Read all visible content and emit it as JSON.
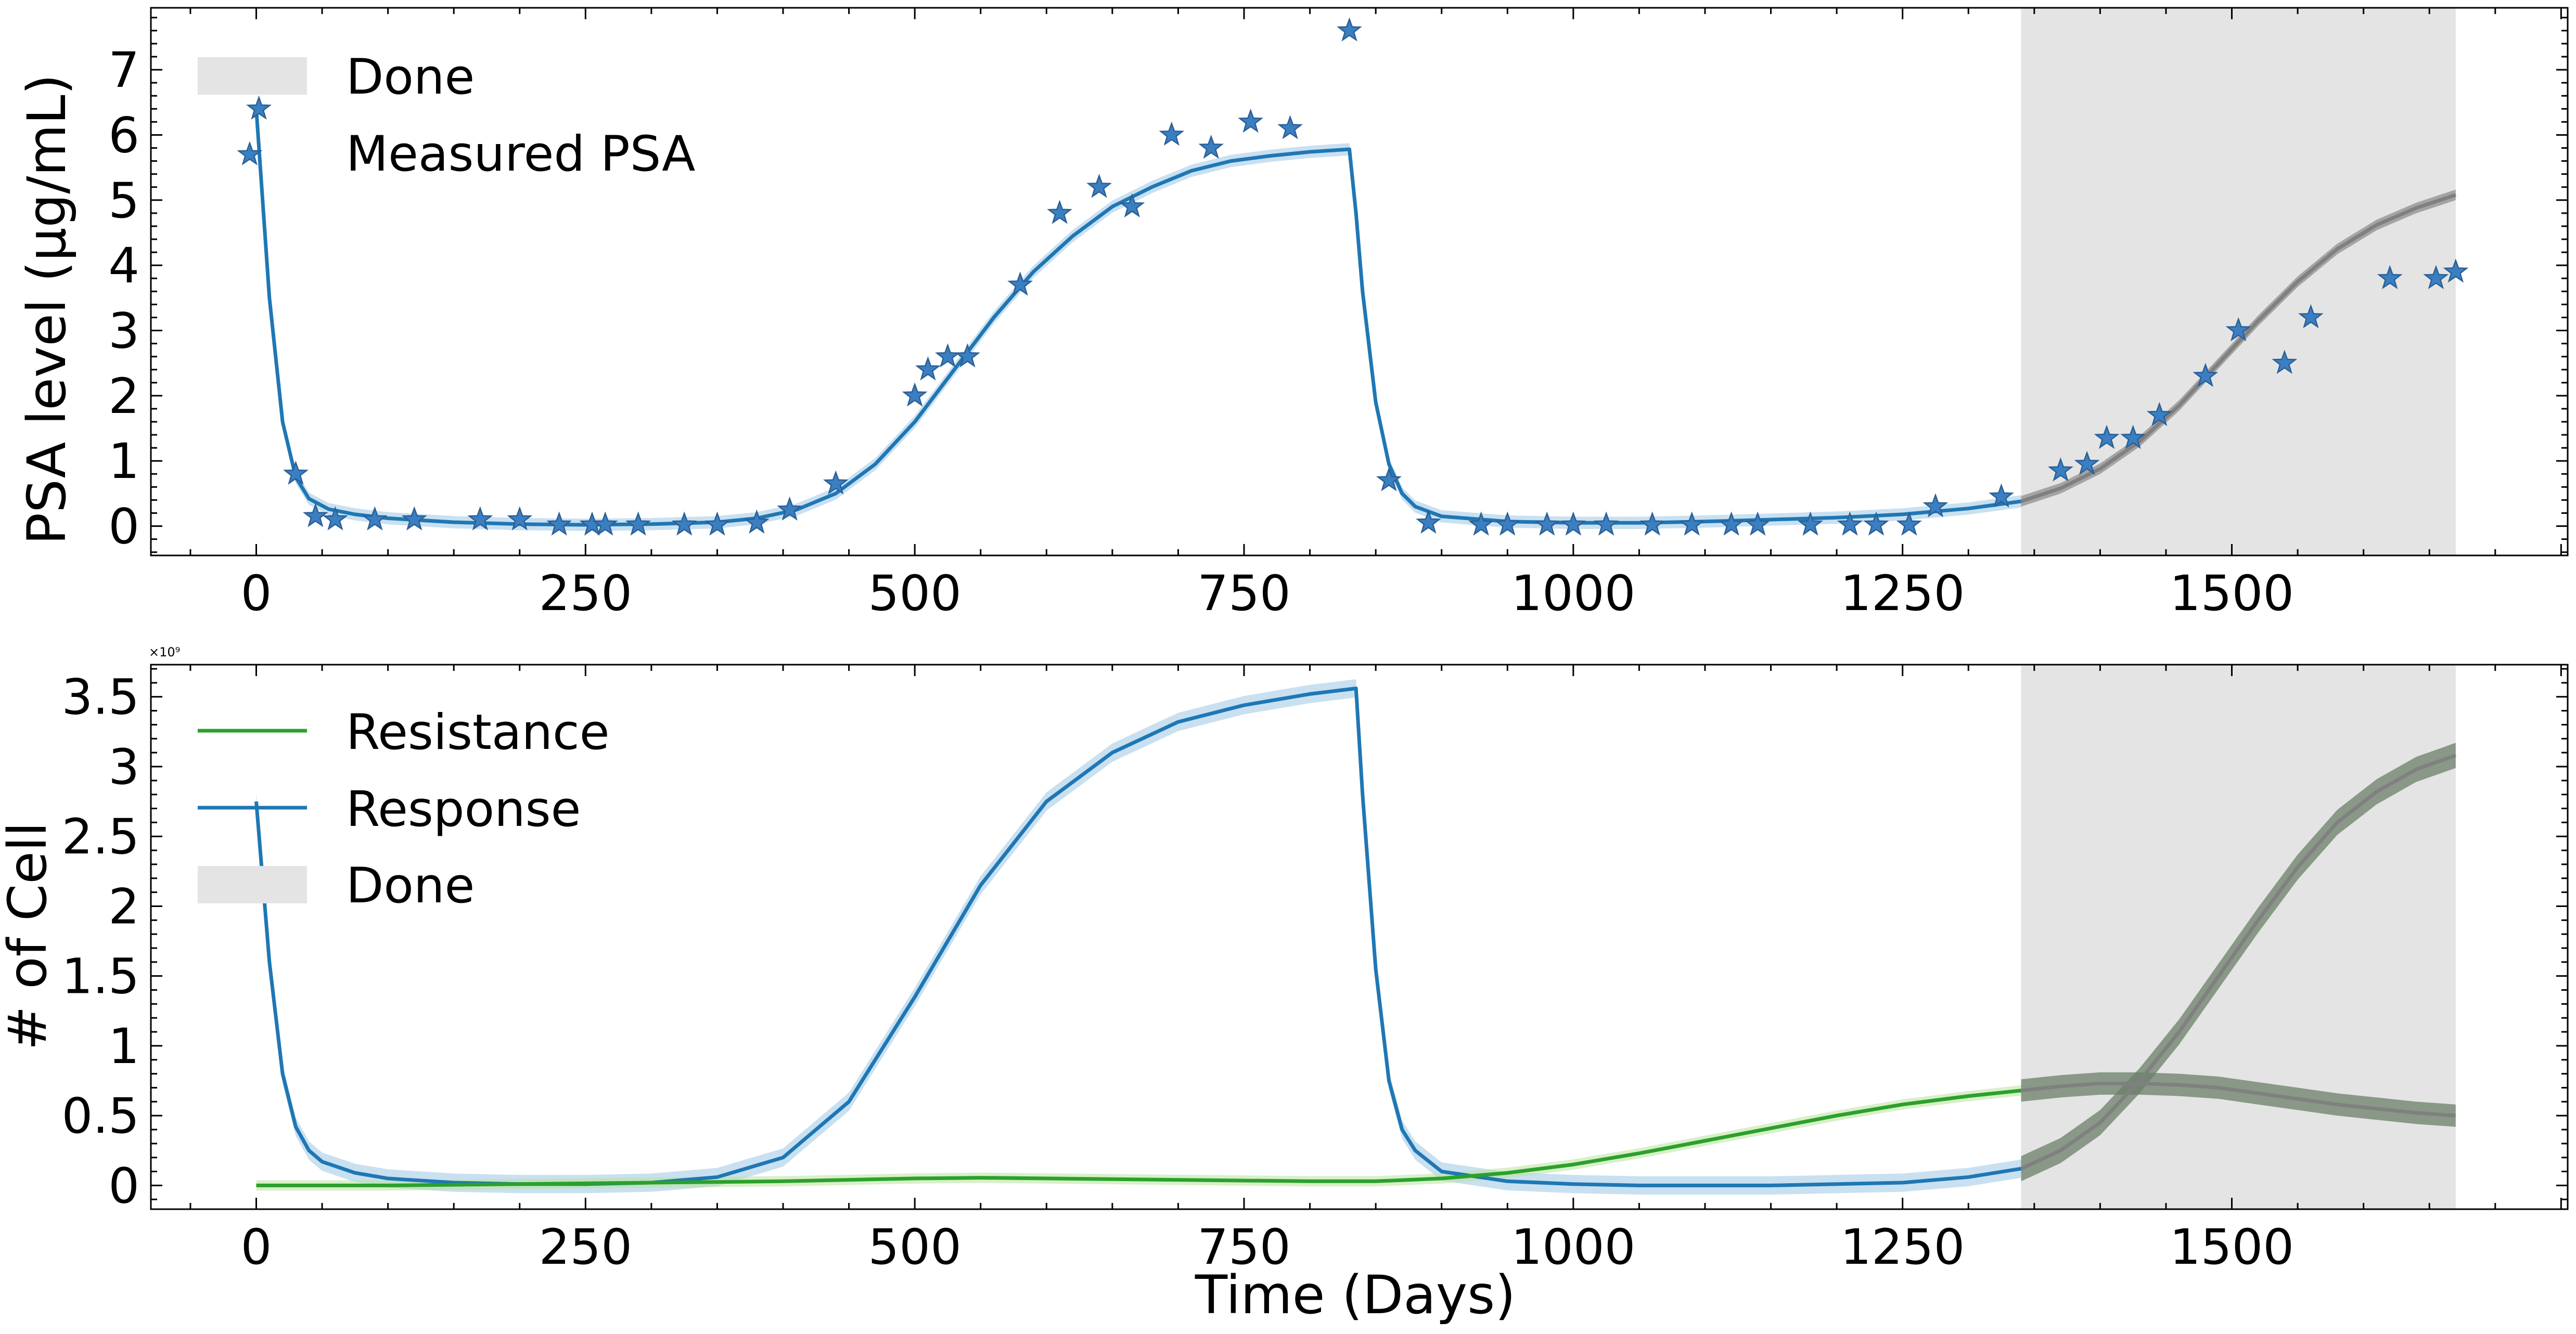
{
  "chart_data": [
    {
      "type": "scatter",
      "ylabel": "PSA level (μg/mL)",
      "xlim": [
        -80,
        1755
      ],
      "ylim": [
        -0.45,
        7.95
      ],
      "xticks": [
        0,
        250,
        500,
        750,
        1000,
        1250,
        1500
      ],
      "yticks": [
        0,
        1,
        2,
        3,
        4,
        5,
        6,
        7
      ],
      "shaded_region": {
        "label": "Done",
        "x": [
          1340,
          1670
        ]
      },
      "legend": [
        "Done",
        "Measured PSA"
      ],
      "legend_position": "top-left",
      "colors": {
        "fit": "#1f77b4",
        "prediction": "#808080",
        "points": "#3a7fc1",
        "shade": "#e4e4e4"
      },
      "series": [
        {
          "name": "Measured PSA",
          "kind": "points",
          "x": [
            -5,
            2,
            30,
            45,
            60,
            90,
            120,
            170,
            200,
            230,
            255,
            265,
            290,
            325,
            350,
            380,
            405,
            440,
            500,
            510,
            525,
            540,
            580,
            610,
            640,
            665,
            695,
            725,
            755,
            785,
            830,
            860,
            890,
            930,
            950,
            980,
            1000,
            1025,
            1060,
            1090,
            1120,
            1140,
            1180,
            1210,
            1230,
            1255,
            1275,
            1325,
            1370,
            1390,
            1405,
            1425,
            1445,
            1480,
            1505,
            1540,
            1560,
            1620,
            1655,
            1670
          ],
          "y": [
            5.7,
            6.4,
            0.8,
            0.15,
            0.1,
            0.1,
            0.1,
            0.1,
            0.1,
            0.02,
            0.02,
            0.02,
            0.02,
            0.02,
            0.02,
            0.05,
            0.25,
            0.65,
            2.0,
            2.4,
            2.6,
            2.6,
            3.7,
            4.8,
            5.2,
            4.9,
            6.0,
            5.8,
            6.2,
            6.1,
            7.6,
            0.7,
            0.05,
            0.02,
            0.02,
            0.02,
            0.02,
            0.02,
            0.02,
            0.02,
            0.02,
            0.02,
            0.02,
            0.02,
            0.02,
            0.02,
            0.3,
            0.45,
            0.85,
            0.95,
            1.35,
            1.35,
            1.7,
            2.3,
            3.0,
            2.5,
            3.2,
            3.8,
            3.8,
            3.9
          ]
        },
        {
          "kind": "line",
          "x": [
            0,
            10,
            20,
            30,
            40,
            55,
            75,
            100,
            150,
            200,
            250,
            300,
            350,
            380,
            410,
            440,
            470,
            500,
            530,
            560,
            590,
            620,
            650,
            680,
            710,
            740,
            770,
            800,
            830,
            835,
            840,
            850,
            860,
            870,
            880,
            900,
            950,
            1000,
            1050,
            1100,
            1150,
            1200,
            1250,
            1300,
            1340
          ],
          "y": [
            6.4,
            3.5,
            1.6,
            0.75,
            0.42,
            0.26,
            0.18,
            0.12,
            0.06,
            0.03,
            0.02,
            0.03,
            0.06,
            0.12,
            0.25,
            0.5,
            0.95,
            1.6,
            2.4,
            3.2,
            3.9,
            4.45,
            4.9,
            5.2,
            5.45,
            5.6,
            5.68,
            5.74,
            5.78,
            4.8,
            3.6,
            1.9,
            0.95,
            0.5,
            0.3,
            0.15,
            0.07,
            0.05,
            0.05,
            0.07,
            0.1,
            0.13,
            0.18,
            0.27,
            0.38
          ]
        },
        {
          "kind": "line",
          "x": [
            1340,
            1370,
            1400,
            1430,
            1460,
            1490,
            1520,
            1550,
            1580,
            1610,
            1640,
            1670
          ],
          "y": [
            0.38,
            0.58,
            0.88,
            1.3,
            1.85,
            2.5,
            3.15,
            3.75,
            4.25,
            4.62,
            4.88,
            5.08
          ]
        }
      ]
    },
    {
      "type": "line",
      "xlabel": "Time (Days)",
      "ylabel": "# of Cell",
      "y_offset_text": "×10⁹",
      "xlim": [
        -80,
        1755
      ],
      "ylim": [
        -0.17,
        3.73
      ],
      "xticks": [
        0,
        250,
        500,
        750,
        1000,
        1250,
        1500
      ],
      "yticks": [
        0.0,
        0.5,
        1.0,
        1.5,
        2.0,
        2.5,
        3.0,
        3.5
      ],
      "shaded_region": {
        "label": "Done",
        "x": [
          1340,
          1670
        ]
      },
      "legend": [
        "Resistance",
        "Response",
        "Done"
      ],
      "legend_position": "top-left",
      "colors": {
        "Resistance": "#2ca02c",
        "Response": "#1f77b4",
        "prediction": "#808080",
        "band": "#6b7f68",
        "shade": "#e4e4e4"
      },
      "series": [
        {
          "name": "Response",
          "x": [
            0,
            10,
            20,
            30,
            40,
            50,
            75,
            100,
            150,
            200,
            250,
            300,
            350,
            400,
            450,
            500,
            550,
            600,
            650,
            700,
            750,
            800,
            835,
            840,
            850,
            860,
            870,
            880,
            900,
            950,
            1000,
            1050,
            1100,
            1150,
            1200,
            1250,
            1300,
            1340
          ],
          "y": [
            2.75,
            1.6,
            0.8,
            0.42,
            0.25,
            0.17,
            0.09,
            0.05,
            0.02,
            0.01,
            0.01,
            0.02,
            0.06,
            0.2,
            0.6,
            1.35,
            2.15,
            2.75,
            3.1,
            3.32,
            3.44,
            3.52,
            3.56,
            2.8,
            1.55,
            0.75,
            0.4,
            0.25,
            0.1,
            0.03,
            0.01,
            0.0,
            0.0,
            0.0,
            0.01,
            0.02,
            0.06,
            0.12
          ]
        },
        {
          "name": "Resistance",
          "x": [
            0,
            100,
            200,
            300,
            400,
            500,
            550,
            600,
            700,
            800,
            850,
            900,
            950,
            1000,
            1050,
            1100,
            1150,
            1200,
            1250,
            1300,
            1340
          ],
          "y": [
            0.0,
            0.0,
            0.01,
            0.02,
            0.03,
            0.05,
            0.055,
            0.05,
            0.04,
            0.03,
            0.03,
            0.05,
            0.09,
            0.15,
            0.23,
            0.32,
            0.41,
            0.5,
            0.58,
            0.64,
            0.68
          ]
        },
        {
          "kind": "prediction",
          "x": [
            1340,
            1370,
            1400,
            1430,
            1460,
            1490,
            1520,
            1550,
            1580,
            1610,
            1640,
            1670
          ],
          "y": [
            0.12,
            0.25,
            0.45,
            0.75,
            1.1,
            1.5,
            1.9,
            2.28,
            2.6,
            2.82,
            2.98,
            3.08
          ],
          "band": 0.09
        },
        {
          "kind": "prediction",
          "x": [
            1340,
            1370,
            1400,
            1430,
            1460,
            1490,
            1520,
            1550,
            1580,
            1610,
            1640,
            1670
          ],
          "y": [
            0.68,
            0.71,
            0.73,
            0.73,
            0.72,
            0.7,
            0.66,
            0.62,
            0.58,
            0.55,
            0.52,
            0.5
          ],
          "band": 0.08
        }
      ]
    }
  ]
}
